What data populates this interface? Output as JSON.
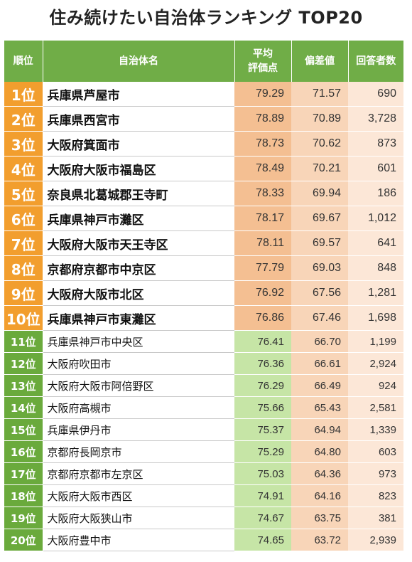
{
  "title": "住み続けたい自治体ランキング TOP20",
  "headers": {
    "rank": "順位",
    "name": "自治体名",
    "avg_line1": "平均",
    "avg_line2": "評価点",
    "deviation": "偏差値",
    "respondents": "回答者数"
  },
  "rows": [
    {
      "rank": "1位",
      "name": "兵庫県芦屋市",
      "avg": "79.29",
      "dev": "71.57",
      "count": "690"
    },
    {
      "rank": "2位",
      "name": "兵庫県西宮市",
      "avg": "78.89",
      "dev": "70.89",
      "count": "3,728"
    },
    {
      "rank": "3位",
      "name": "大阪府箕面市",
      "avg": "78.73",
      "dev": "70.62",
      "count": "873"
    },
    {
      "rank": "4位",
      "name": "大阪府大阪市福島区",
      "avg": "78.49",
      "dev": "70.21",
      "count": "601"
    },
    {
      "rank": "5位",
      "name": "奈良県北葛城郡王寺町",
      "avg": "78.33",
      "dev": "69.94",
      "count": "186"
    },
    {
      "rank": "6位",
      "name": "兵庫県神戸市灘区",
      "avg": "78.17",
      "dev": "69.67",
      "count": "1,012"
    },
    {
      "rank": "7位",
      "name": "大阪府大阪市天王寺区",
      "avg": "78.11",
      "dev": "69.57",
      "count": "641"
    },
    {
      "rank": "8位",
      "name": "京都府京都市中京区",
      "avg": "77.79",
      "dev": "69.03",
      "count": "848"
    },
    {
      "rank": "9位",
      "name": "大阪府大阪市北区",
      "avg": "76.92",
      "dev": "67.56",
      "count": "1,281"
    },
    {
      "rank": "10位",
      "name": "兵庫県神戸市東灘区",
      "avg": "76.86",
      "dev": "67.46",
      "count": "1,698"
    },
    {
      "rank": "11位",
      "name": "兵庫県神戸市中央区",
      "avg": "76.41",
      "dev": "66.70",
      "count": "1,199"
    },
    {
      "rank": "12位",
      "name": "大阪府吹田市",
      "avg": "76.36",
      "dev": "66.61",
      "count": "2,924"
    },
    {
      "rank": "13位",
      "name": "大阪府大阪市阿倍野区",
      "avg": "76.29",
      "dev": "66.49",
      "count": "924"
    },
    {
      "rank": "14位",
      "name": "大阪府高槻市",
      "avg": "75.66",
      "dev": "65.43",
      "count": "2,581"
    },
    {
      "rank": "15位",
      "name": "兵庫県伊丹市",
      "avg": "75.37",
      "dev": "64.94",
      "count": "1,339"
    },
    {
      "rank": "16位",
      "name": "京都府長岡京市",
      "avg": "75.29",
      "dev": "64.80",
      "count": "603"
    },
    {
      "rank": "17位",
      "name": "京都府京都市左京区",
      "avg": "75.03",
      "dev": "64.36",
      "count": "973"
    },
    {
      "rank": "18位",
      "name": "大阪府大阪市西区",
      "avg": "74.91",
      "dev": "64.16",
      "count": "823"
    },
    {
      "rank": "19位",
      "name": "大阪府大阪狭山市",
      "avg": "74.67",
      "dev": "63.75",
      "count": "381"
    },
    {
      "rank": "20位",
      "name": "大阪府豊中市",
      "avg": "74.65",
      "dev": "63.72",
      "count": "2,939"
    }
  ],
  "colors": {
    "header_green": "#70ad47",
    "top_rank_orange": "#f29e2e",
    "low_rank_green": "#6aaa3c",
    "top_avg_peach": "#f4bf92",
    "low_avg_green": "#c6e5a6",
    "deviation_peach": "#f8d5b8",
    "respondents_peach": "#fce7d7"
  }
}
